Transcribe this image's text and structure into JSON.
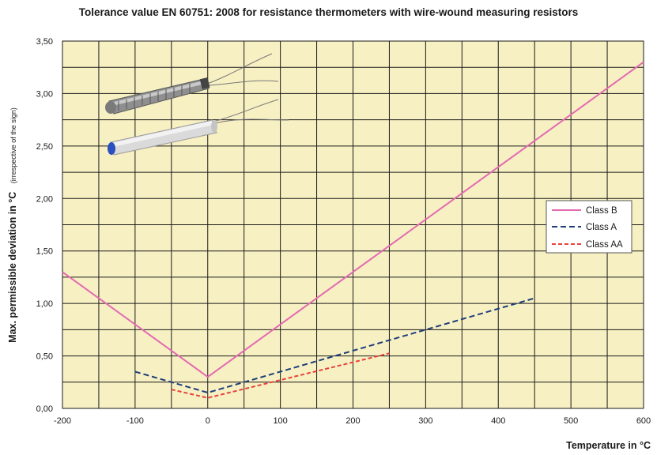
{
  "chart_data": {
    "type": "line",
    "title": "Tolerance value EN 60751: 2008 for resistance thermometers with wire-wound measuring resistors",
    "xlabel": "Temperature in °C",
    "ylabel": "Max. permissible deviation in °C",
    "ylabel_note": "(irrespective of the sign)",
    "xlim": [
      -200,
      600
    ],
    "ylim": [
      0,
      3.5
    ],
    "x_ticks": [
      -200,
      -100,
      0,
      100,
      200,
      300,
      400,
      500,
      600
    ],
    "y_ticks": [
      0,
      0.5,
      1.0,
      1.5,
      2.0,
      2.5,
      3.0,
      3.5
    ],
    "y_tick_labels": [
      "0,00",
      "0,50",
      "1,00",
      "1,50",
      "2,00",
      "2,50",
      "3,00",
      "3,50"
    ],
    "grid": true,
    "legend_position": "right",
    "background_color": "#f7f0c3",
    "series": [
      {
        "name": "Class B",
        "color": "#e36ab0",
        "dash": "solid",
        "x": [
          -200,
          0,
          600
        ],
        "y": [
          1.3,
          0.3,
          3.3
        ]
      },
      {
        "name": "Class A",
        "color": "#1f3d7a",
        "dash": "dashed",
        "x": [
          -100,
          0,
          450
        ],
        "y": [
          0.35,
          0.15,
          1.05
        ]
      },
      {
        "name": "Class AA",
        "color": "#e8413a",
        "dash": "dashed",
        "x": [
          -50,
          0,
          250
        ],
        "y": [
          0.18,
          0.1,
          0.525
        ]
      }
    ]
  }
}
